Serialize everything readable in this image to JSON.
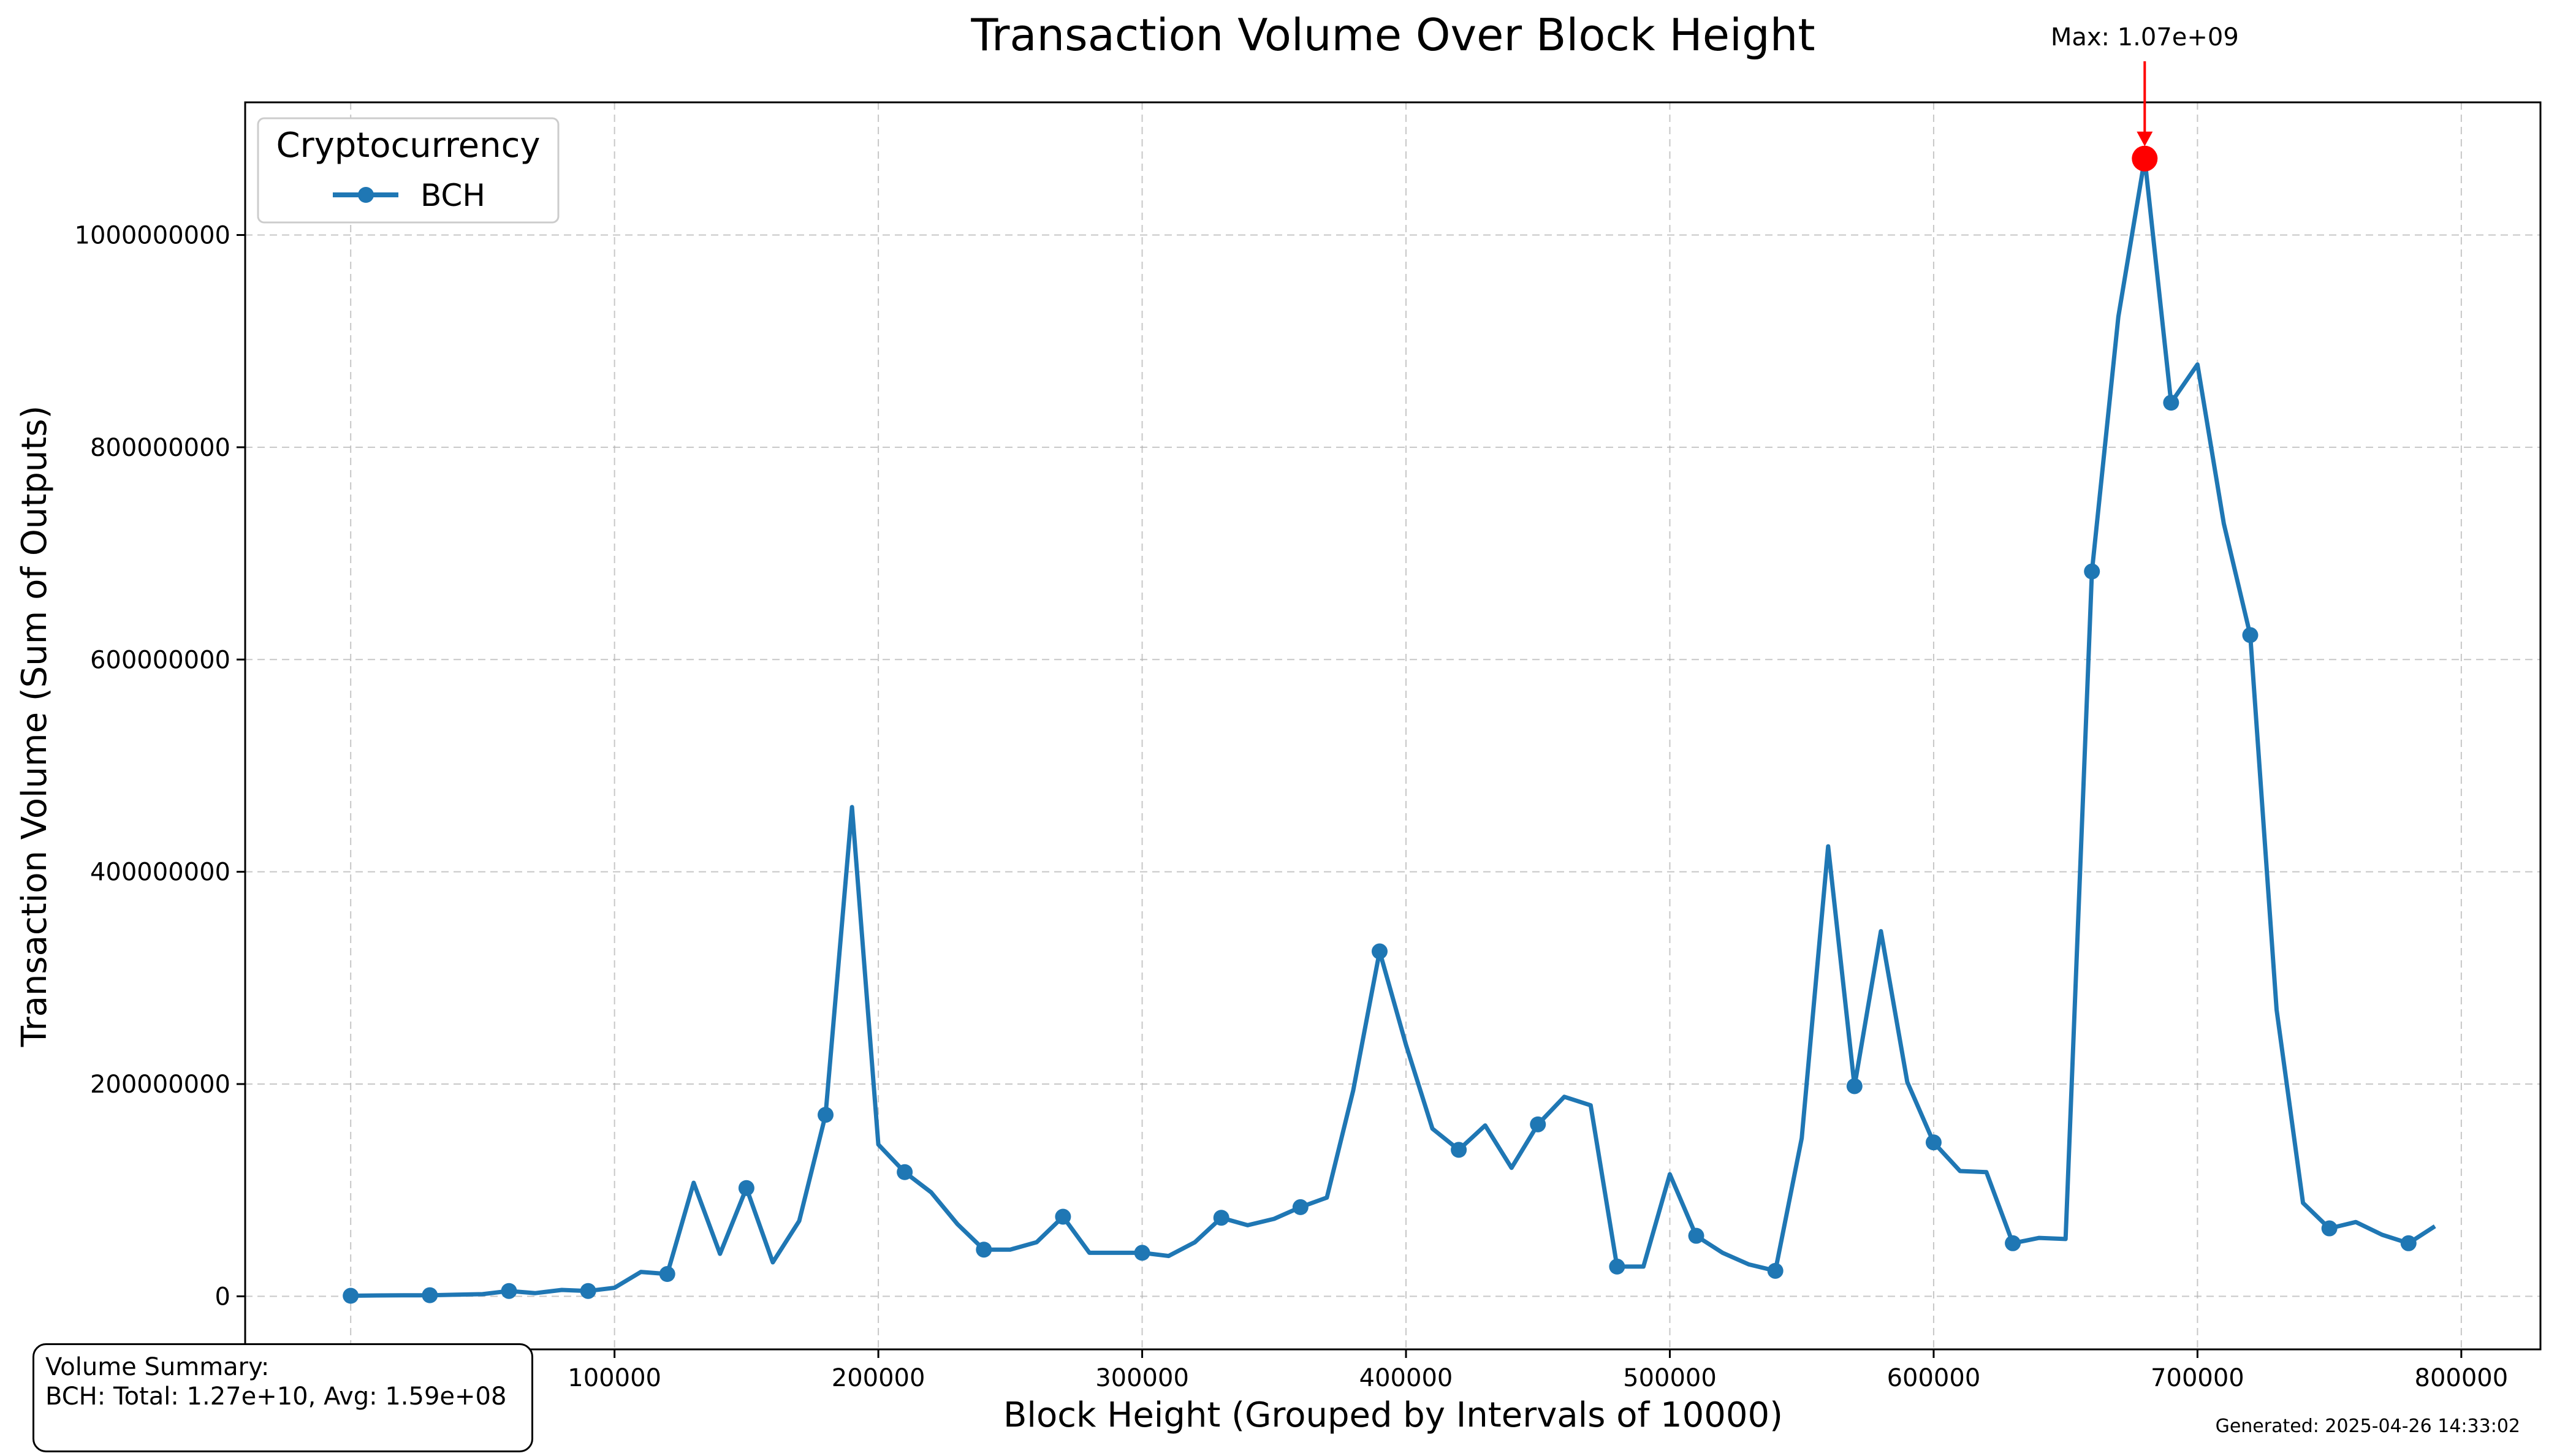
{
  "chart_data": {
    "type": "line",
    "title": "Transaction Volume Over Block Height",
    "xlabel": "Block Height (Grouped by Intervals of 10000)",
    "ylabel": "Transaction Volume (Sum of Outputs)",
    "xlim": [
      -40000,
      830000
    ],
    "ylim": [
      -50000000,
      1125000000
    ],
    "x_ticks": [
      0,
      100000,
      200000,
      300000,
      400000,
      500000,
      600000,
      700000,
      800000
    ],
    "y_ticks": [
      0,
      200000000,
      400000000,
      600000000,
      800000000,
      1000000000
    ],
    "x_tick_labels": [
      "0",
      "100000",
      "200000",
      "300000",
      "400000",
      "500000",
      "600000",
      "700000",
      "800000"
    ],
    "y_tick_labels": [
      "0",
      "200000000",
      "400000000",
      "600000000",
      "800000000",
      "1000000000"
    ],
    "grid": true,
    "legend": {
      "title": "Cryptocurrency",
      "placement": "top-left"
    },
    "series": [
      {
        "name": "BCH",
        "color": "#1f77b4",
        "x": [
          0,
          10000,
          20000,
          30000,
          40000,
          50000,
          60000,
          70000,
          80000,
          90000,
          100000,
          110000,
          120000,
          130000,
          140000,
          150000,
          160000,
          170000,
          180000,
          190000,
          200000,
          210000,
          220000,
          230000,
          240000,
          250000,
          260000,
          270000,
          280000,
          290000,
          300000,
          310000,
          320000,
          330000,
          340000,
          350000,
          360000,
          370000,
          380000,
          390000,
          400000,
          410000,
          420000,
          430000,
          440000,
          450000,
          460000,
          470000,
          480000,
          490000,
          500000,
          510000,
          520000,
          530000,
          540000,
          550000,
          560000,
          570000,
          580000,
          590000,
          600000,
          610000,
          620000,
          630000,
          640000,
          650000,
          660000,
          670000,
          680000,
          690000,
          700000,
          710000,
          720000,
          730000,
          740000,
          750000,
          760000,
          770000,
          780000,
          790000
        ],
        "y": [
          500000,
          800000,
          1000000,
          1000000,
          1500000,
          2000000,
          5000000,
          3000000,
          6000000,
          5000000,
          8000000,
          23000000,
          21000000,
          107000000,
          40000000,
          102000000,
          32000000,
          71000000,
          171000000,
          461000000,
          143000000,
          117000000,
          98000000,
          68000000,
          44000000,
          44000000,
          51000000,
          75000000,
          41000000,
          41000000,
          41000000,
          38000000,
          51000000,
          74000000,
          67000000,
          73000000,
          84000000,
          93000000,
          194000000,
          325000000,
          237000000,
          158000000,
          138000000,
          161000000,
          121000000,
          162000000,
          188000000,
          180000000,
          28000000,
          28000000,
          115000000,
          57000000,
          41000000,
          30000000,
          24000000,
          149000000,
          424000000,
          198000000,
          344000000,
          202000000,
          145000000,
          118000000,
          117000000,
          50000000,
          55000000,
          54000000,
          683000000,
          923000000,
          1072000000,
          842000000,
          878000000,
          728000000,
          623000000,
          270000000,
          88000000,
          64000000,
          70000000,
          58000000,
          50000000,
          66000000
        ],
        "marker_every": 3
      }
    ],
    "annotation": {
      "text": "Max: 1.07e+09",
      "x": 680000,
      "y": 1072000000,
      "color": "#ff0000"
    }
  },
  "summary": {
    "heading": "Volume Summary:",
    "line": "BCH: Total: 1.27e+10, Avg: 1.59e+08"
  },
  "generated": "Generated: 2025-04-26 14:33:02"
}
